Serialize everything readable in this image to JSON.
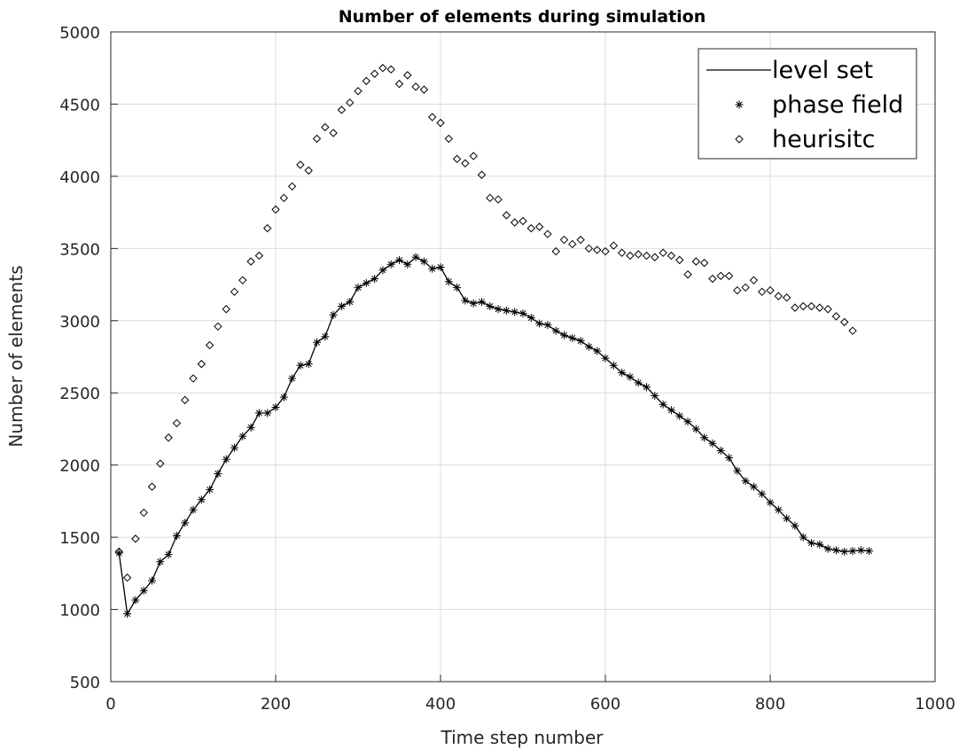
{
  "chart_data": {
    "type": "line",
    "title": "Number of elements during simulation",
    "xlabel": "Time step number",
    "ylabel": "Number of elements",
    "xlim": [
      0,
      1000
    ],
    "ylim": [
      500,
      5000
    ],
    "xticks": [
      "0",
      "200",
      "400",
      "600",
      "800",
      "1000"
    ],
    "yticks": [
      "500",
      "1000",
      "1500",
      "2000",
      "2500",
      "3000",
      "3500",
      "4000",
      "4500",
      "5000"
    ],
    "grid": true,
    "legend_position": "top-right",
    "series": [
      {
        "name": "level set",
        "style": "line",
        "color": "#000000",
        "x": [
          10,
          20,
          30,
          40,
          50,
          60,
          70,
          80,
          90,
          100,
          110,
          120,
          130,
          140,
          150,
          160,
          170,
          180,
          190,
          200,
          210,
          220,
          230,
          240,
          250,
          260,
          270,
          280,
          290,
          300,
          310,
          320,
          330,
          340,
          350,
          360,
          370,
          380,
          390,
          400,
          410,
          420,
          430,
          440,
          450,
          460,
          470,
          480,
          490,
          500,
          510,
          520,
          530,
          540,
          550,
          560,
          570,
          580,
          590,
          600,
          610,
          620,
          630,
          640,
          650,
          660,
          670,
          680,
          690,
          700,
          710,
          720,
          730,
          740,
          750,
          760,
          770,
          780,
          790,
          800,
          810,
          820,
          830,
          840,
          850,
          860,
          870,
          880,
          890,
          900,
          910,
          920
        ],
        "y": [
          1390,
          970,
          1065,
          1130,
          1200,
          1330,
          1380,
          1510,
          1600,
          1690,
          1760,
          1830,
          1940,
          2040,
          2120,
          2200,
          2260,
          2360,
          2360,
          2400,
          2470,
          2600,
          2690,
          2700,
          2850,
          2890,
          3040,
          3100,
          3130,
          3230,
          3260,
          3290,
          3350,
          3390,
          3420,
          3390,
          3440,
          3410,
          3360,
          3370,
          3270,
          3230,
          3140,
          3120,
          3130,
          3100,
          3080,
          3070,
          3060,
          3050,
          3020,
          2980,
          2970,
          2930,
          2900,
          2880,
          2860,
          2820,
          2790,
          2740,
          2690,
          2640,
          2610,
          2570,
          2540,
          2480,
          2420,
          2380,
          2340,
          2300,
          2250,
          2190,
          2150,
          2100,
          2050,
          1960,
          1890,
          1850,
          1800,
          1740,
          1690,
          1630,
          1580,
          1500,
          1460,
          1450,
          1420,
          1410,
          1400,
          1405,
          1410,
          1405
        ]
      },
      {
        "name": "phase field",
        "style": "marker-asterisk",
        "color": "#000000",
        "x": [
          10,
          20,
          30,
          40,
          50,
          60,
          70,
          80,
          90,
          100,
          110,
          120,
          130,
          140,
          150,
          160,
          170,
          180,
          190,
          200,
          210,
          220,
          230,
          240,
          250,
          260,
          270,
          280,
          290,
          300,
          310,
          320,
          330,
          340,
          350,
          360,
          370,
          380,
          390,
          400,
          410,
          420,
          430,
          440,
          450,
          460,
          470,
          480,
          490,
          500,
          510,
          520,
          530,
          540,
          550,
          560,
          570,
          580,
          590,
          600,
          610,
          620,
          630,
          640,
          650,
          660,
          670,
          680,
          690,
          700,
          710,
          720,
          730,
          740,
          750,
          760,
          770,
          780,
          790,
          800,
          810,
          820,
          830,
          840,
          850,
          860,
          870,
          880,
          890,
          900,
          910,
          920
        ],
        "y": [
          1390,
          970,
          1065,
          1130,
          1200,
          1330,
          1380,
          1510,
          1600,
          1690,
          1760,
          1830,
          1940,
          2040,
          2120,
          2200,
          2260,
          2360,
          2360,
          2400,
          2470,
          2600,
          2690,
          2700,
          2850,
          2890,
          3040,
          3100,
          3130,
          3230,
          3260,
          3290,
          3350,
          3390,
          3420,
          3390,
          3440,
          3410,
          3360,
          3370,
          3270,
          3230,
          3140,
          3120,
          3130,
          3100,
          3080,
          3070,
          3060,
          3050,
          3020,
          2980,
          2970,
          2930,
          2900,
          2880,
          2860,
          2820,
          2790,
          2740,
          2690,
          2640,
          2610,
          2570,
          2540,
          2480,
          2420,
          2380,
          2340,
          2300,
          2250,
          2190,
          2150,
          2100,
          2050,
          1960,
          1890,
          1850,
          1800,
          1740,
          1690,
          1630,
          1580,
          1500,
          1460,
          1450,
          1420,
          1410,
          1400,
          1405,
          1410,
          1405
        ]
      },
      {
        "name": "heurisitc",
        "style": "marker-diamond",
        "color": "#000000",
        "x": [
          10,
          20,
          30,
          40,
          50,
          60,
          70,
          80,
          90,
          100,
          110,
          120,
          130,
          140,
          150,
          160,
          170,
          180,
          190,
          200,
          210,
          220,
          230,
          240,
          250,
          260,
          270,
          280,
          290,
          300,
          310,
          320,
          330,
          340,
          350,
          360,
          370,
          380,
          390,
          400,
          410,
          420,
          430,
          440,
          450,
          460,
          470,
          480,
          490,
          500,
          510,
          520,
          530,
          540,
          550,
          560,
          570,
          580,
          590,
          600,
          610,
          620,
          630,
          640,
          650,
          660,
          670,
          680,
          690,
          700,
          710,
          720,
          730,
          740,
          750,
          760,
          770,
          780,
          790,
          800,
          810,
          820,
          830,
          840,
          850,
          860,
          870,
          880,
          890,
          900
        ],
        "y": [
          1400,
          1220,
          1490,
          1670,
          1850,
          2010,
          2190,
          2290,
          2450,
          2600,
          2700,
          2830,
          2960,
          3080,
          3200,
          3280,
          3410,
          3450,
          3640,
          3770,
          3850,
          3930,
          4080,
          4040,
          4260,
          4340,
          4300,
          4460,
          4510,
          4590,
          4660,
          4710,
          4750,
          4740,
          4640,
          4700,
          4620,
          4600,
          4410,
          4370,
          4260,
          4120,
          4090,
          4140,
          4010,
          3850,
          3840,
          3730,
          3680,
          3690,
          3640,
          3650,
          3600,
          3480,
          3560,
          3530,
          3560,
          3500,
          3490,
          3480,
          3520,
          3470,
          3450,
          3460,
          3450,
          3440,
          3470,
          3450,
          3420,
          3320,
          3410,
          3400,
          3290,
          3310,
          3310,
          3210,
          3230,
          3280,
          3200,
          3210,
          3170,
          3160,
          3090,
          3100,
          3100,
          3090,
          3080,
          3030,
          2990,
          2930
        ]
      }
    ]
  }
}
